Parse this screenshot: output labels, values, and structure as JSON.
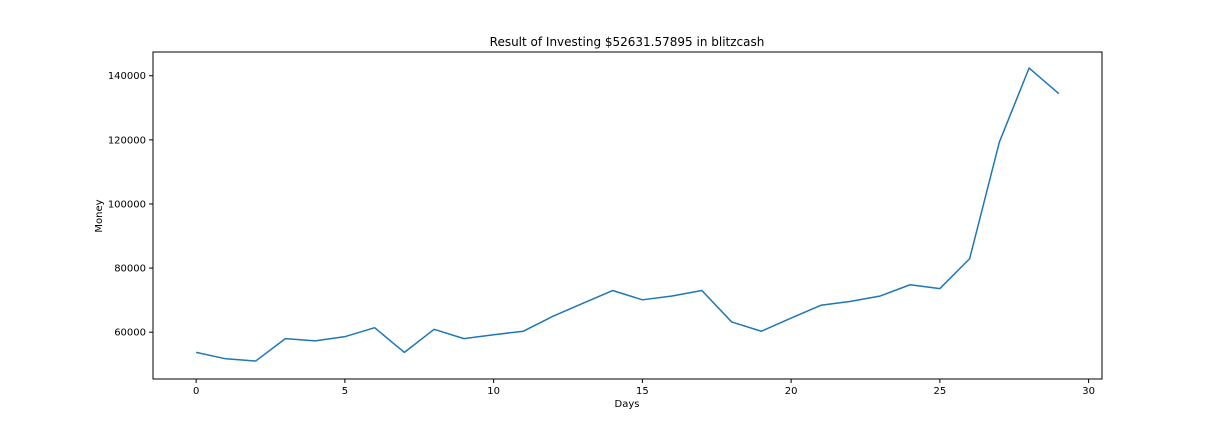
{
  "chart_data": {
    "type": "line",
    "title": "Result of Investing $52631.57895 in blitzcash",
    "xlabel": "Days",
    "ylabel": "Money",
    "xlim": [
      -1.45,
      30.45
    ],
    "ylim": [
      45400,
      147400
    ],
    "x_ticks": [
      0,
      5,
      10,
      15,
      20,
      25,
      30
    ],
    "y_ticks": [
      60000,
      80000,
      100000,
      120000,
      140000
    ],
    "grid": false,
    "legend": "none",
    "series": [
      {
        "color": "#1f77b4",
        "x": [
          0,
          1,
          2,
          3,
          4,
          5,
          6,
          7,
          8,
          9,
          10,
          11,
          12,
          13,
          14,
          15,
          16,
          17,
          18,
          19,
          20,
          21,
          22,
          23,
          24,
          25,
          26,
          27,
          28,
          29
        ],
        "y": [
          53700,
          51700,
          51000,
          58000,
          57300,
          58600,
          61400,
          53700,
          60900,
          58000,
          59200,
          60300,
          65000,
          69000,
          73000,
          70100,
          71300,
          73000,
          63200,
          60300,
          64400,
          68400,
          69600,
          71300,
          74800,
          73600,
          82900,
          119300,
          142400,
          134400
        ]
      }
    ]
  }
}
